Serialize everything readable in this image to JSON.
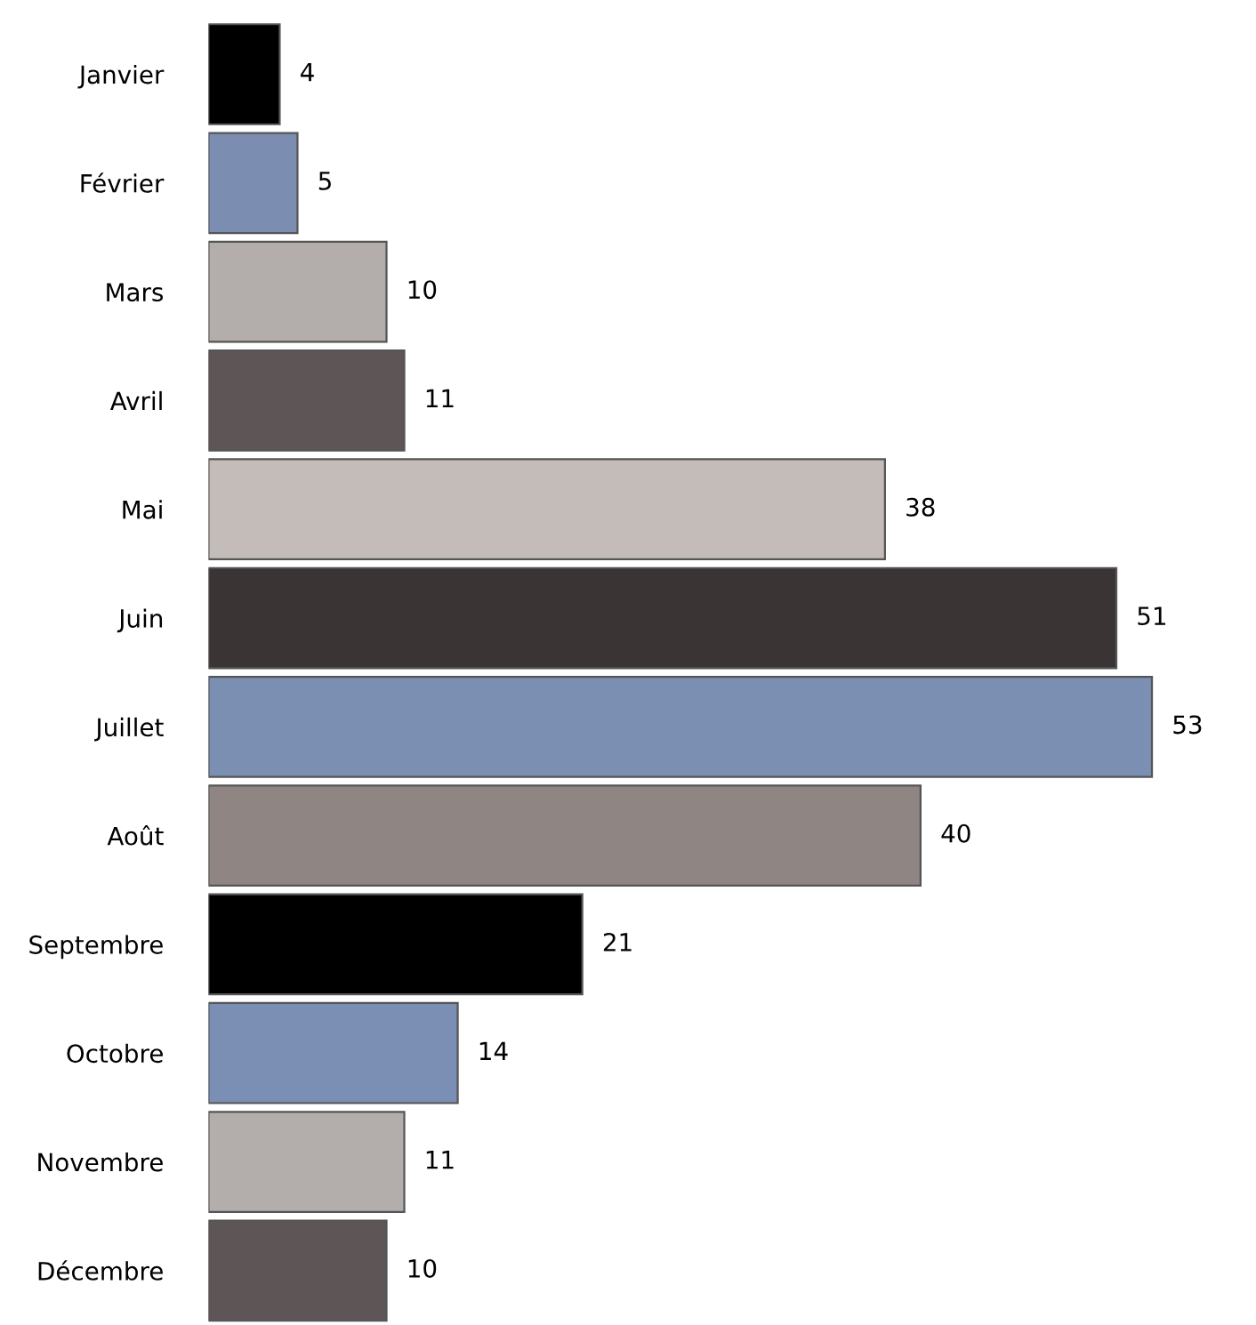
{
  "chart_data": {
    "type": "bar",
    "orientation": "horizontal",
    "data_labels": true,
    "legend": false,
    "grid": false,
    "categories": [
      "Janvier",
      "Février",
      "Mars",
      "Avril",
      "Mai",
      "Juin",
      "Juillet",
      "Août",
      "Septembre",
      "Octobre",
      "Novembre",
      "Décembre"
    ],
    "values": [
      4,
      5,
      10,
      11,
      38,
      51,
      53,
      40,
      21,
      14,
      11,
      10
    ],
    "colors": [
      "#000000",
      "#7b8db0",
      "#b3aeac",
      "#5e5656",
      "#c4bcb8",
      "#3a3434",
      "#7b8fb3",
      "#8f8683",
      "#000000",
      "#7b8fb5",
      "#b3aeac",
      "#5e5656"
    ]
  }
}
